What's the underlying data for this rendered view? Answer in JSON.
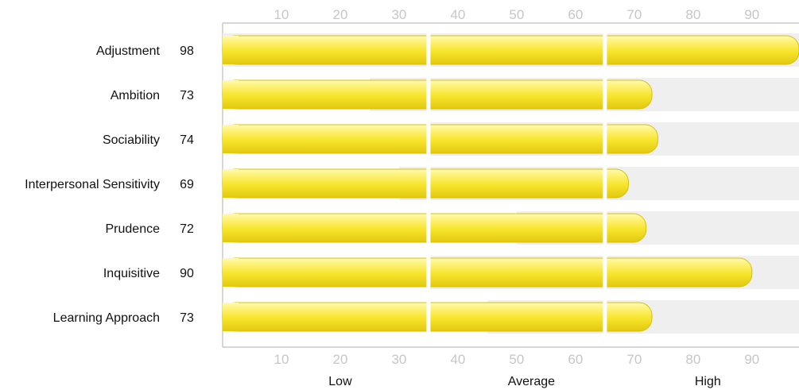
{
  "chart_data": {
    "type": "bar",
    "orientation": "horizontal",
    "categories": [
      "Adjustment",
      "Ambition",
      "Sociability",
      "Interpersonal Sensitivity",
      "Prudence",
      "Inquisitive",
      "Learning Approach"
    ],
    "values": [
      98,
      73,
      74,
      69,
      72,
      90,
      73
    ],
    "background_ranges": [
      [
        0,
        100
      ],
      [
        25,
        100
      ],
      [
        35,
        100
      ],
      [
        30,
        100
      ],
      [
        50,
        100
      ],
      [
        35,
        100
      ],
      [
        45,
        100
      ]
    ],
    "xticks": [
      10,
      20,
      30,
      40,
      50,
      60,
      70,
      80,
      90
    ],
    "xlim": [
      0,
      98
    ],
    "band_dividers": [
      35,
      65
    ],
    "bands": [
      {
        "label": "Low",
        "center": 20
      },
      {
        "label": "Average",
        "center": 52.5
      },
      {
        "label": "High",
        "center": 82.5
      }
    ],
    "title": "",
    "xlabel": "",
    "ylabel": "",
    "grid": false,
    "colors": {
      "bar_light": "#fff27a",
      "bar_mid": "#f5e52a",
      "bar_dark": "#e2c811",
      "bar_edge": "#d9bf0c",
      "background_range": "#efefef",
      "divider": "#ffffff",
      "frame": "#c8c8c8",
      "tick_text": "#c6c6c6"
    }
  }
}
